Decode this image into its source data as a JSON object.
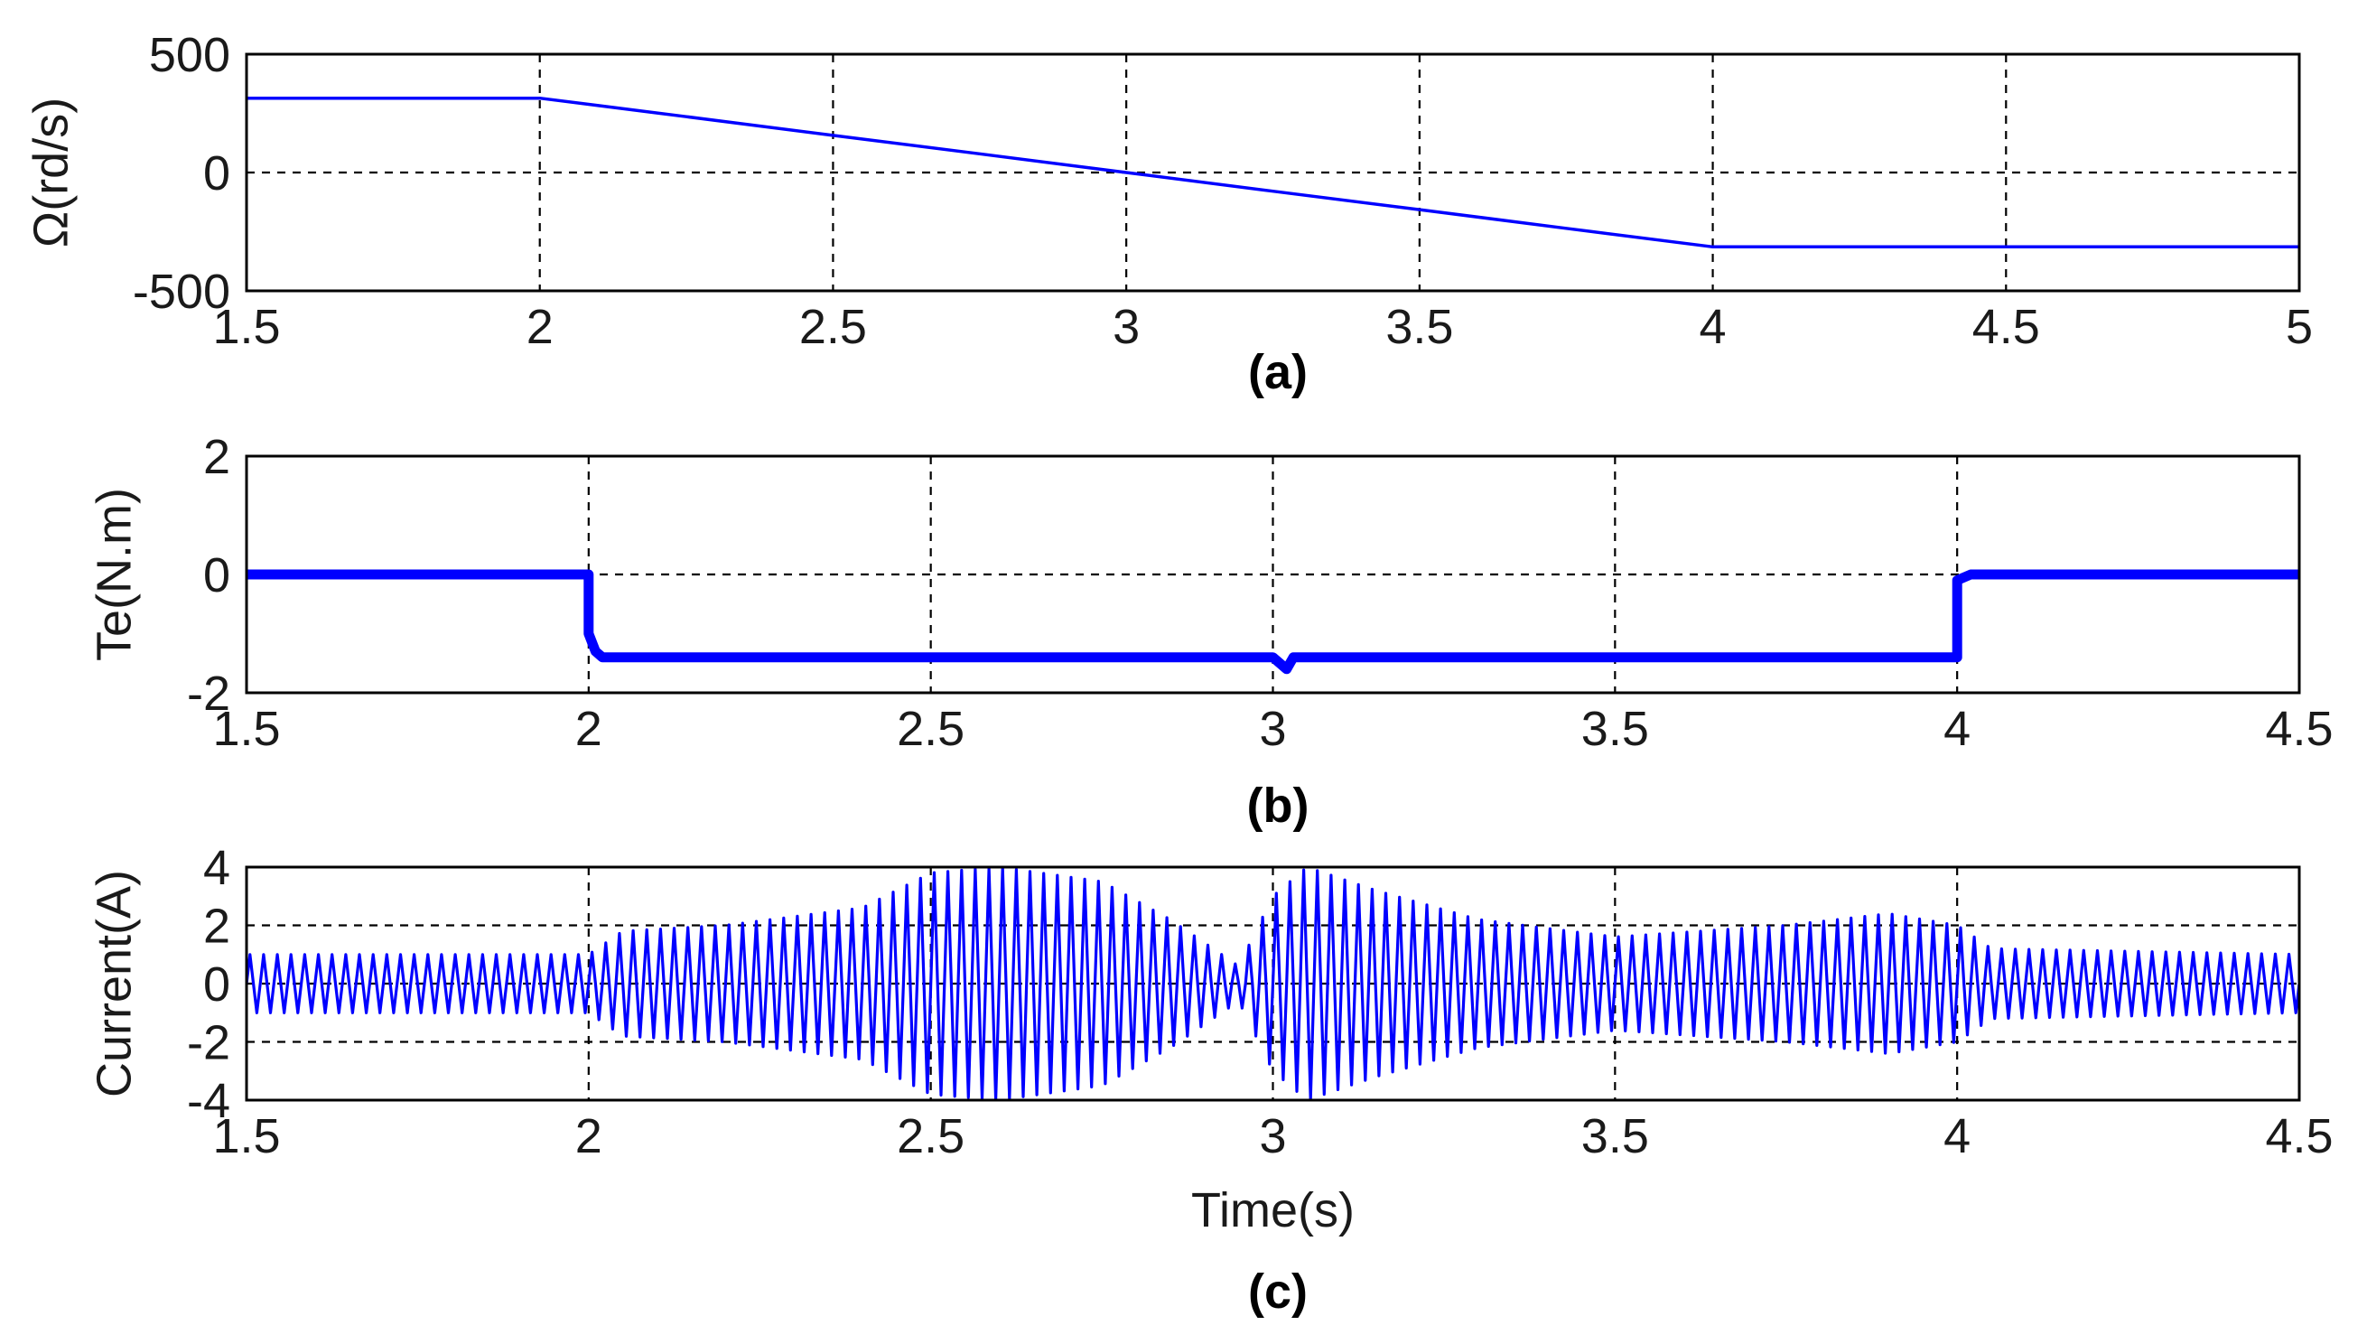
{
  "chart_data": [
    {
      "type": "line",
      "caption": "(a)",
      "ylabel": "Ω(rd/s)",
      "xlabel": "",
      "xlim": [
        1.5,
        5
      ],
      "ylim": [
        -500,
        500
      ],
      "x_ticks": [
        "1.5",
        "2",
        "2.5",
        "3",
        "3.5",
        "4",
        "4.5",
        "5"
      ],
      "y_ticks": [
        "500",
        "0",
        "-500"
      ],
      "grid": true,
      "color": "#0000ff",
      "series": [
        {
          "x": [
            1.5,
            2.0,
            2.1,
            2.25,
            2.5,
            2.75,
            3.0,
            3.25,
            3.5,
            3.75,
            4.0,
            5.0
          ],
          "y": [
            314,
            314,
            283,
            236,
            157,
            79,
            0,
            -79,
            -157,
            -236,
            -314,
            -314
          ]
        }
      ]
    },
    {
      "type": "line",
      "caption": "(b)",
      "ylabel": "Te(N.m)",
      "xlabel": "",
      "xlim": [
        1.5,
        4.5
      ],
      "ylim": [
        -2,
        2
      ],
      "x_ticks": [
        "1.5",
        "2",
        "2.5",
        "3",
        "3.5",
        "4",
        "4.5"
      ],
      "y_ticks": [
        "2",
        "0",
        "-2"
      ],
      "grid": true,
      "color": "#0000ff",
      "series": [
        {
          "x": [
            1.5,
            2.0,
            2.0,
            2.01,
            2.02,
            3.0,
            3.02,
            3.03,
            3.04,
            4.0,
            4.0,
            4.02,
            4.5
          ],
          "y": [
            0,
            0,
            -1.0,
            -1.3,
            -1.4,
            -1.4,
            -1.6,
            -1.4,
            -1.4,
            -1.4,
            -0.1,
            0,
            0
          ]
        }
      ]
    },
    {
      "type": "line",
      "caption": "(c)",
      "ylabel": "Current(A)",
      "xlabel": "Time(s)",
      "xlim": [
        1.5,
        4.5
      ],
      "ylim": [
        -4,
        4
      ],
      "x_ticks": [
        "1.5",
        "2",
        "2.5",
        "3",
        "3.5",
        "4",
        "4.5"
      ],
      "y_ticks": [
        "4",
        "2",
        "0",
        "-2",
        "-4"
      ],
      "grid": true,
      "color": "#0000ff",
      "envelope": {
        "t": [
          1.5,
          2.0,
          2.05,
          2.2,
          2.4,
          2.5,
          2.6,
          2.75,
          2.85,
          2.95,
          3.0,
          3.05,
          3.15,
          3.3,
          3.5,
          3.75,
          3.9,
          4.0,
          4.05,
          4.5
        ],
        "amp": [
          1.0,
          1.0,
          1.8,
          2.0,
          2.6,
          3.8,
          4.0,
          3.5,
          2.2,
          0.6,
          3.0,
          4.0,
          3.2,
          2.2,
          1.6,
          2.0,
          2.4,
          2.0,
          1.2,
          1.0
        ]
      },
      "frequency_hz": 50
    }
  ]
}
